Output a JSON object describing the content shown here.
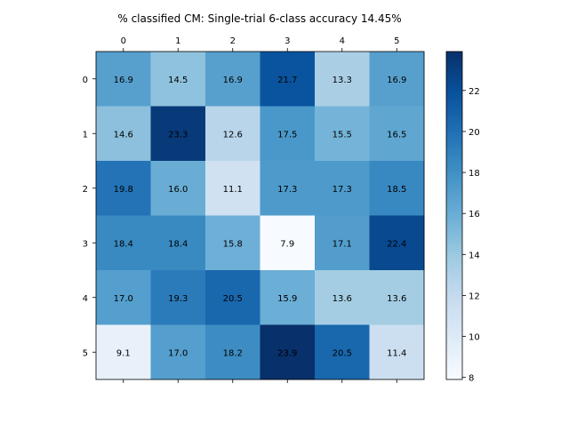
{
  "chart_data": {
    "type": "heatmap",
    "title": "% classified CM: Single-trial 6-class accuracy 14.45%",
    "xlabel": "",
    "ylabel": "",
    "x_categories": [
      "0",
      "1",
      "2",
      "3",
      "4",
      "5"
    ],
    "y_categories": [
      "0",
      "1",
      "2",
      "3",
      "4",
      "5"
    ],
    "values": [
      [
        16.9,
        14.5,
        16.9,
        21.7,
        13.3,
        16.9
      ],
      [
        14.6,
        23.3,
        12.6,
        17.5,
        15.5,
        16.5
      ],
      [
        19.8,
        16.0,
        11.1,
        17.3,
        17.3,
        18.5
      ],
      [
        18.4,
        18.4,
        15.8,
        7.9,
        17.1,
        22.4
      ],
      [
        17.0,
        19.3,
        20.5,
        15.9,
        13.6,
        13.6
      ],
      [
        9.1,
        17.0,
        18.2,
        23.9,
        20.5,
        11.4
      ]
    ],
    "cell_labels": [
      [
        "16.9",
        "14.5",
        "16.9",
        "21.7",
        "13.3",
        "16.9"
      ],
      [
        "14.6",
        "23.3",
        "12.6",
        "17.5",
        "15.5",
        "16.5"
      ],
      [
        "19.8",
        "16.0",
        "11.1",
        "17.3",
        "17.3",
        "18.5"
      ],
      [
        "18.4",
        "18.4",
        "15.8",
        "7.9",
        "17.1",
        "22.4"
      ],
      [
        "17.0",
        "19.3",
        "20.5",
        "15.9",
        "13.6",
        "13.6"
      ],
      [
        "9.1",
        "17.0",
        "18.2",
        "23.9",
        "20.5",
        "11.4"
      ]
    ],
    "colormap": "Blues",
    "color_range": [
      7.9,
      23.9
    ],
    "x_axis_position": "top",
    "colorbar": {
      "ticks": [
        8,
        10,
        12,
        14,
        16,
        18,
        20,
        22
      ],
      "tick_labels": [
        "8",
        "10",
        "12",
        "14",
        "16",
        "18",
        "20",
        "22"
      ],
      "placement": "right"
    },
    "grid": false,
    "legend": "none"
  }
}
